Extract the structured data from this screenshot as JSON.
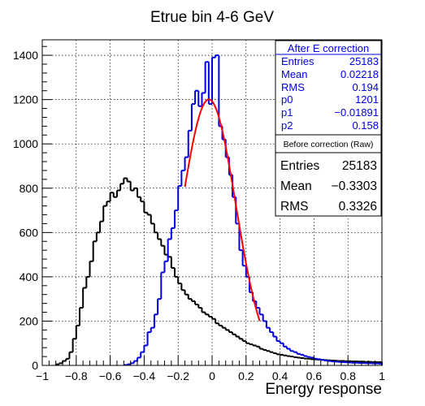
{
  "chart_data": {
    "type": "histogram",
    "title": "Etrue bin 4-6 GeV",
    "xlabel": "Energy response",
    "ylabel": "",
    "xlim": [
      -1,
      1
    ],
    "ylim": [
      0,
      1470
    ],
    "grid": true,
    "bin_width": 0.02,
    "x_ticks": [
      -1,
      -0.8,
      -0.6,
      -0.4,
      -0.2,
      0,
      0.2,
      0.4,
      0.6,
      0.8,
      1
    ],
    "x_tick_labels": [
      "−1",
      "−0.8",
      "−0.6",
      "−0.4",
      "−0.2",
      "0",
      "0.2",
      "0.4",
      "0.6",
      "0.8",
      "1"
    ],
    "y_ticks": [
      0,
      200,
      400,
      600,
      800,
      1000,
      1200,
      1400
    ],
    "y_tick_labels": [
      "0",
      "200",
      "400",
      "600",
      "800",
      "1000",
      "1200",
      "1400"
    ],
    "series": [
      {
        "name": "Before correction (Raw)",
        "color": "#000000",
        "x": [
          -0.91,
          -0.89,
          -0.87,
          -0.85,
          -0.83,
          -0.81,
          -0.79,
          -0.77,
          -0.75,
          -0.73,
          -0.71,
          -0.69,
          -0.67,
          -0.65,
          -0.63,
          -0.61,
          -0.59,
          -0.57,
          -0.55,
          -0.53,
          -0.51,
          -0.49,
          -0.47,
          -0.45,
          -0.43,
          -0.41,
          -0.39,
          -0.37,
          -0.35,
          -0.33,
          -0.31,
          -0.29,
          -0.27,
          -0.25,
          -0.23,
          -0.21,
          -0.19,
          -0.17,
          -0.15,
          -0.13,
          -0.11,
          -0.09,
          -0.07,
          -0.05,
          -0.03,
          -0.01,
          0.01,
          0.03,
          0.05,
          0.07,
          0.09,
          0.11,
          0.13,
          0.15,
          0.17,
          0.19,
          0.21,
          0.23,
          0.25,
          0.27,
          0.29,
          0.31,
          0.33,
          0.35,
          0.37,
          0.39,
          0.41,
          0.43,
          0.45,
          0.47,
          0.49,
          0.51,
          0.53,
          0.55,
          0.57,
          0.59,
          0.61,
          0.63,
          0.65,
          0.67,
          0.69,
          0.71,
          0.73,
          0.75,
          0.77,
          0.79,
          0.81,
          0.83,
          0.85,
          0.87,
          0.89,
          0.91,
          0.93,
          0.95,
          0.97,
          0.99
        ],
        "values": [
          5,
          10,
          20,
          30,
          60,
          120,
          180,
          260,
          350,
          400,
          470,
          560,
          600,
          650,
          720,
          740,
          780,
          760,
          790,
          820,
          845,
          830,
          790,
          800,
          760,
          740,
          690,
          680,
          640,
          600,
          570,
          540,
          500,
          490,
          440,
          400,
          370,
          340,
          320,
          300,
          290,
          275,
          260,
          240,
          230,
          220,
          210,
          190,
          180,
          170,
          160,
          150,
          140,
          130,
          120,
          110,
          100,
          95,
          90,
          85,
          75,
          70,
          65,
          60,
          55,
          50,
          48,
          45,
          42,
          40,
          37,
          35,
          33,
          31,
          30,
          28,
          27,
          26,
          25,
          24,
          23,
          22,
          21,
          20,
          20,
          19,
          19,
          18,
          18,
          17,
          17,
          16,
          16,
          15,
          15,
          15
        ]
      },
      {
        "name": "After E correction",
        "color": "#0000e0",
        "x": [
          -0.51,
          -0.49,
          -0.47,
          -0.45,
          -0.43,
          -0.41,
          -0.39,
          -0.37,
          -0.35,
          -0.33,
          -0.31,
          -0.29,
          -0.27,
          -0.25,
          -0.23,
          -0.21,
          -0.19,
          -0.17,
          -0.15,
          -0.13,
          -0.11,
          -0.09,
          -0.07,
          -0.05,
          -0.03,
          -0.01,
          0.01,
          0.03,
          0.05,
          0.07,
          0.09,
          0.11,
          0.13,
          0.15,
          0.17,
          0.19,
          0.21,
          0.23,
          0.25,
          0.27,
          0.29,
          0.31,
          0.33,
          0.35,
          0.37,
          0.39,
          0.41,
          0.43,
          0.45,
          0.47,
          0.49,
          0.51,
          0.53,
          0.55,
          0.57,
          0.59,
          0.61,
          0.63,
          0.65,
          0.67,
          0.69,
          0.71,
          0.73,
          0.75,
          0.77,
          0.79,
          0.81,
          0.83,
          0.85,
          0.87,
          0.89,
          0.91,
          0.93,
          0.95,
          0.97,
          0.99
        ],
        "values": [
          2,
          5,
          10,
          20,
          35,
          60,
          90,
          150,
          170,
          230,
          300,
          420,
          470,
          570,
          620,
          700,
          810,
          880,
          940,
          1060,
          1180,
          1240,
          1170,
          1230,
          1370,
          1180,
          1390,
          1400,
          1080,
          1020,
          940,
          860,
          760,
          640,
          520,
          450,
          400,
          330,
          290,
          260,
          230,
          200,
          170,
          150,
          130,
          110,
          100,
          85,
          75,
          65,
          60,
          52,
          48,
          42,
          38,
          35,
          30,
          28,
          25,
          22,
          20,
          18,
          17,
          16,
          15,
          14,
          13,
          12,
          12,
          11,
          11,
          10,
          10,
          9,
          9,
          8
        ]
      },
      {
        "name": "Gaussian fit",
        "color": "#ff0000",
        "type": "function",
        "function": "gaus",
        "x_range": [
          -0.16,
          0.28
        ],
        "p0": 1201,
        "p1": -0.01891,
        "p2": 0.158
      }
    ],
    "stats_boxes": [
      {
        "title": "After E correction",
        "color": "#0000e0",
        "rows": [
          {
            "label": "Entries",
            "value": "25183"
          },
          {
            "label": "Mean",
            "value": "0.02218"
          },
          {
            "label": "RMS",
            "value": "0.194"
          },
          {
            "label": "p0",
            "value": "1201"
          },
          {
            "label": "p1",
            "value": "−0.01891"
          },
          {
            "label": "p2",
            "value": "0.158"
          }
        ]
      },
      {
        "title": "Before correction (Raw)",
        "color": "#000000",
        "rows": [
          {
            "label": "Entries",
            "value": "25183"
          },
          {
            "label": "Mean",
            "value": "−0.3303"
          },
          {
            "label": "RMS",
            "value": "0.3326"
          }
        ]
      }
    ]
  }
}
